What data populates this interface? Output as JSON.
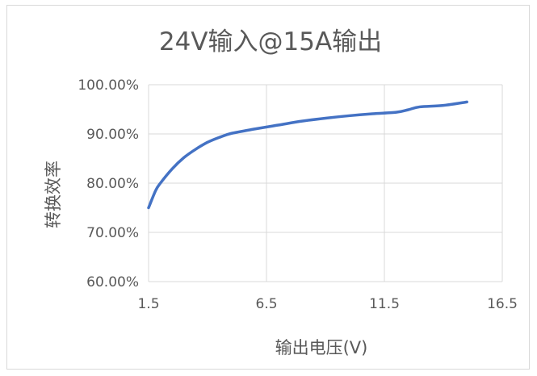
{
  "chart_data": {
    "type": "line",
    "title": "24V输入@15A输出",
    "xlabel": "输出电压(V)",
    "ylabel": "转换效率",
    "xlim": [
      1.5,
      16.5
    ],
    "ylim": [
      60,
      100
    ],
    "x_ticks": [
      "1.5",
      "6.5",
      "11.5",
      "16.5"
    ],
    "y_ticks": [
      "60.00%",
      "70.00%",
      "80.00%",
      "90.00%",
      "100.00%"
    ],
    "x_tick_values": [
      1.5,
      6.5,
      11.5,
      16.5
    ],
    "y_tick_values": [
      60,
      70,
      80,
      90,
      100
    ],
    "grid": true,
    "legend": "none",
    "series": [
      {
        "color": "#4472c4",
        "x": [
          1.5,
          1.8,
          2.0,
          2.5,
          3.0,
          3.5,
          4.0,
          4.5,
          5.0,
          6.0,
          7.0,
          8.0,
          9.0,
          10.0,
          11.0,
          12.0,
          12.5,
          13.0,
          14.0,
          15.0
        ],
        "y": [
          75.0,
          78.5,
          80.0,
          82.9,
          85.2,
          86.9,
          88.3,
          89.3,
          90.1,
          91.0,
          91.8,
          92.6,
          93.2,
          93.7,
          94.1,
          94.4,
          94.9,
          95.5,
          95.8,
          96.5
        ]
      }
    ]
  }
}
